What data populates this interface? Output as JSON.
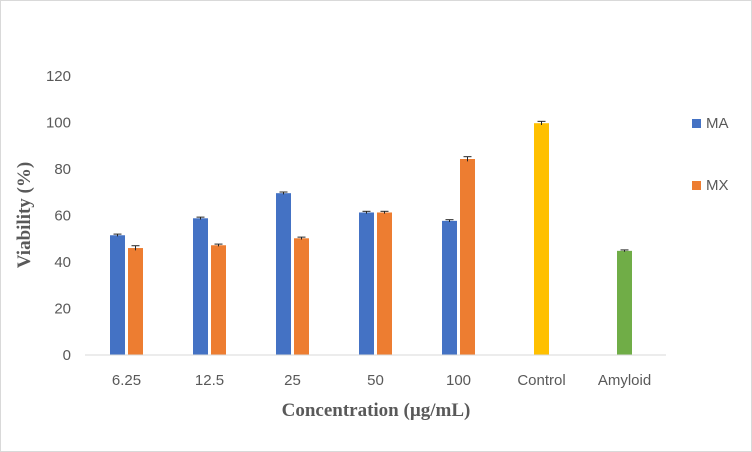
{
  "chart_data": {
    "type": "bar",
    "title": "",
    "xlabel": "Concentration (µg/mL)",
    "ylabel": "Viability  (%)",
    "ylim": [
      0,
      120
    ],
    "yticks": [
      0,
      20,
      40,
      60,
      80,
      100,
      120
    ],
    "grid": false,
    "legend": "right",
    "categories": [
      "6.25",
      "12.5",
      "25",
      "50",
      "100",
      "Control",
      "Amyloid"
    ],
    "series": [
      {
        "name": "MA",
        "color": "#4472c4",
        "values": [
          51.5,
          58.8,
          69.6,
          61.3,
          57.7,
          null,
          null
        ],
        "errors": [
          0.5,
          0.5,
          0.5,
          0.5,
          0.5,
          null,
          null
        ]
      },
      {
        "name": "MX",
        "color": "#ed7d31",
        "values": [
          46.0,
          47.2,
          50.2,
          61.3,
          84.3,
          null,
          null
        ],
        "errors": [
          1.0,
          0.5,
          0.5,
          0.5,
          1.0,
          null,
          null
        ]
      }
    ],
    "single_bars": [
      {
        "category": "Control",
        "value": 99.7,
        "error": 0.8,
        "color": "#ffc000"
      },
      {
        "category": "Amyloid",
        "value": 44.8,
        "error": 0.4,
        "color": "#70ad47"
      }
    ]
  }
}
